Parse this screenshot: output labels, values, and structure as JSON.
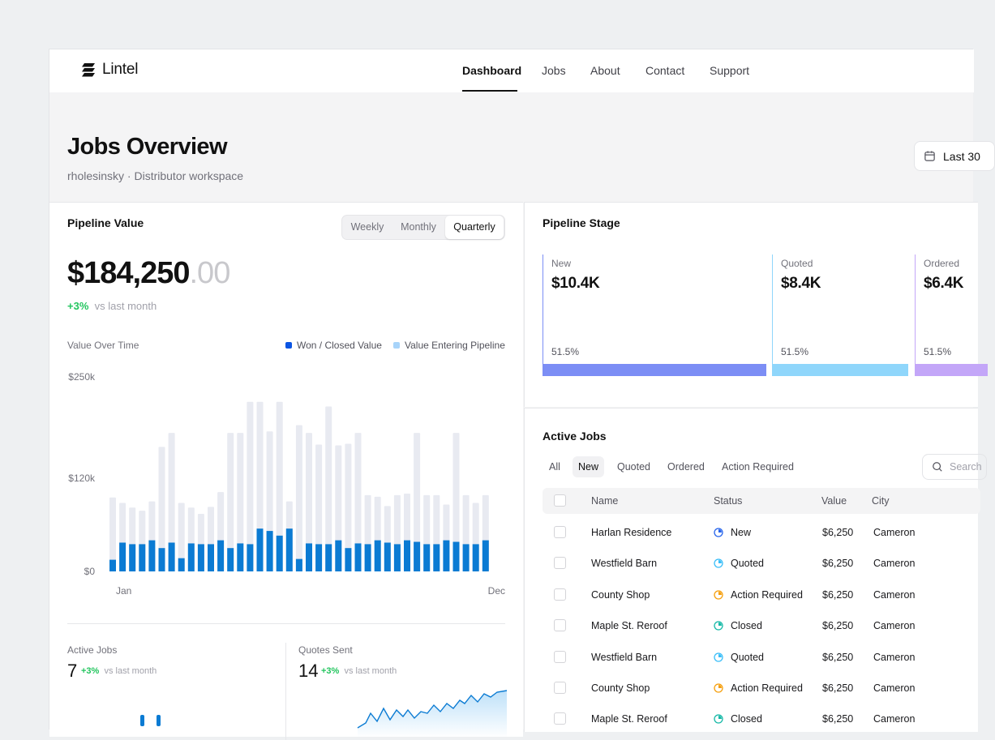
{
  "app": {
    "name": "Lintel"
  },
  "nav": {
    "items": [
      "Dashboard",
      "Jobs",
      "About",
      "Contact",
      "Support"
    ],
    "active": "Dashboard"
  },
  "header": {
    "title": "Jobs Overview",
    "subtitle": "rholesinsky · Distributor workspace",
    "date_range": "Last 30"
  },
  "pipeline_value": {
    "title": "Pipeline Value",
    "periods": [
      "Weekly",
      "Monthly",
      "Quarterly"
    ],
    "active_period": "Quarterly",
    "amount_main": "$184,250",
    "amount_cents": ".00",
    "delta": "+3%",
    "delta_label": "vs last month",
    "chart_title": "Value Over Time",
    "legend_won": "Won / Closed Value",
    "legend_entering": "Value Entering Pipeline"
  },
  "chart_data": {
    "type": "bar",
    "title": "Value Over Time",
    "x_start_label": "Jan",
    "x_end_label": "Dec",
    "y_ticks": [
      "$250k",
      "$120k",
      "$0"
    ],
    "ylim": [
      0,
      250
    ],
    "colors": {
      "won": "#0b7bd3",
      "entering": "#e8eaf1"
    },
    "series": [
      {
        "name": "Value Entering Pipeline",
        "values": [
          95,
          88,
          82,
          78,
          90,
          160,
          178,
          88,
          82,
          74,
          83,
          102,
          178,
          178,
          218,
          218,
          180,
          218,
          90,
          188,
          178,
          163,
          212,
          162,
          164,
          178,
          98,
          96,
          84,
          98,
          100,
          178,
          98,
          98,
          86,
          178,
          98,
          88,
          98
        ]
      },
      {
        "name": "Won / Closed Value",
        "values": [
          15,
          37,
          35,
          35,
          40,
          30,
          37,
          17,
          36,
          35,
          35,
          40,
          30,
          36,
          35,
          55,
          52,
          46,
          55,
          16,
          36,
          35,
          35,
          40,
          30,
          36,
          35,
          40,
          37,
          35,
          40,
          38,
          35,
          35,
          40,
          38,
          35,
          35,
          40
        ]
      }
    ]
  },
  "stats": [
    {
      "label": "Active Jobs",
      "value": "7",
      "delta": "+3%",
      "delta_label": "vs last month"
    },
    {
      "label": "Quotes Sent",
      "value": "14",
      "delta": "+3%",
      "delta_label": "vs last month"
    }
  ],
  "pipeline_stage": {
    "title": "Pipeline Stage",
    "stages": [
      {
        "label": "New",
        "value": "$10.4K",
        "pct": "51.5%",
        "color": "#7c8ef5"
      },
      {
        "label": "Quoted",
        "value": "$8.4K",
        "pct": "51.5%",
        "color": "#8fd6fb"
      },
      {
        "label": "Ordered",
        "value": "$6.4K",
        "pct": "51.5%",
        "color": "#c3a6f8"
      }
    ]
  },
  "active_jobs": {
    "title": "Active Jobs",
    "filters": [
      "All",
      "New",
      "Quoted",
      "Ordered",
      "Action Required"
    ],
    "active_filter": "New",
    "search_placeholder": "Search",
    "columns": [
      "Name",
      "Status",
      "Value",
      "City"
    ],
    "rows": [
      {
        "name": "Harlan Residence",
        "status": "New",
        "value": "$6,250",
        "city": "Cameron"
      },
      {
        "name": "Westfield Barn",
        "status": "Quoted",
        "value": "$6,250",
        "city": "Cameron"
      },
      {
        "name": "County Shop",
        "status": "Action Required",
        "value": "$6,250",
        "city": "Cameron"
      },
      {
        "name": "Maple St. Reroof",
        "status": "Closed",
        "value": "$6,250",
        "city": "Cameron"
      },
      {
        "name": "Westfield Barn",
        "status": "Quoted",
        "value": "$6,250",
        "city": "Cameron"
      },
      {
        "name": "County Shop",
        "status": "Action Required",
        "value": "$6,250",
        "city": "Cameron"
      },
      {
        "name": "Maple St. Reroof",
        "status": "Closed",
        "value": "$6,250",
        "city": "Cameron"
      }
    ],
    "status_colors": {
      "New": "#2563eb",
      "Quoted": "#38bdf8",
      "Action Required": "#f59e0b",
      "Closed": "#14b8a6"
    }
  }
}
